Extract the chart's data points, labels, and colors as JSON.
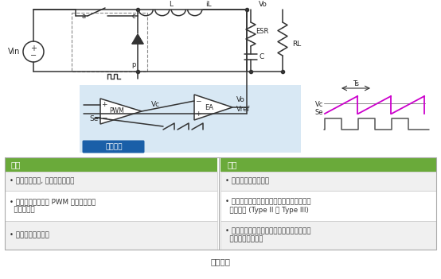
{
  "title": "圖（一）",
  "table_header_left": "優點",
  "table_header_right": "缺點",
  "table_header_color": "#6aaa3a",
  "pros": [
    "• 單一回授路徑, 簡化控制器設計",
    "• 有較大的三角波在 PWM 輸入端，降低\n  占空比誤差",
    "• 較常見在早期設計"
  ],
  "cons": [
    "• 補償迴路速度常較慢",
    "• 由電感器與輸出電容產生雙極點，補償迴路\n  不易設計 (Type II 或 Type III)",
    "• 誤差放大器增益被輸入電壓影響，達到寬輸\n  入電壓設計有挑戰"
  ],
  "mode_label": "電壓模式",
  "mode_bg": "#1a5fa8",
  "circuit_bg": "#d8e8f4",
  "magenta": "#cc00cc",
  "line_color": "#333333",
  "fig_w": 5.54,
  "fig_h": 3.51,
  "dpi": 100
}
